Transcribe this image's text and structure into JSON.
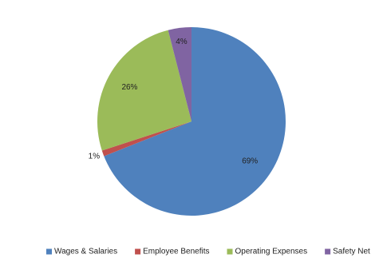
{
  "chart_data": {
    "type": "pie",
    "categories": [
      "Wages & Salaries",
      "Employee Benefits",
      "Operating Expenses",
      "Safety Net"
    ],
    "values": [
      69,
      1,
      26,
      4
    ],
    "value_labels": [
      "69%",
      "1%",
      "26%",
      "4%"
    ],
    "colors": [
      "#4f81bd",
      "#c0504d",
      "#9bbb59",
      "#8064a2"
    ],
    "legend": "bottom"
  }
}
